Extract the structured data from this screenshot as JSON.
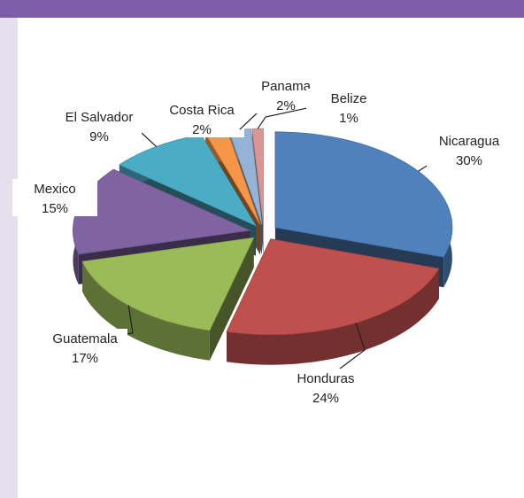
{
  "chart_data": {
    "type": "pie",
    "categories": [
      "Nicaragua",
      "Honduras",
      "Guatemala",
      "Mexico",
      "El Salvador",
      "Costa Rica",
      "Panama",
      "Belize"
    ],
    "values": [
      30,
      24,
      17,
      15,
      9,
      2,
      2,
      1
    ],
    "value_labels": [
      "30%",
      "24%",
      "17%",
      "15%",
      "9%",
      "2%",
      "2%",
      "1%"
    ],
    "colors": [
      "#4f81bd",
      "#c0504d",
      "#9bbb59",
      "#8064a2",
      "#4bacc6",
      "#f79646",
      "#95b3d7",
      "#d99694"
    ]
  }
}
